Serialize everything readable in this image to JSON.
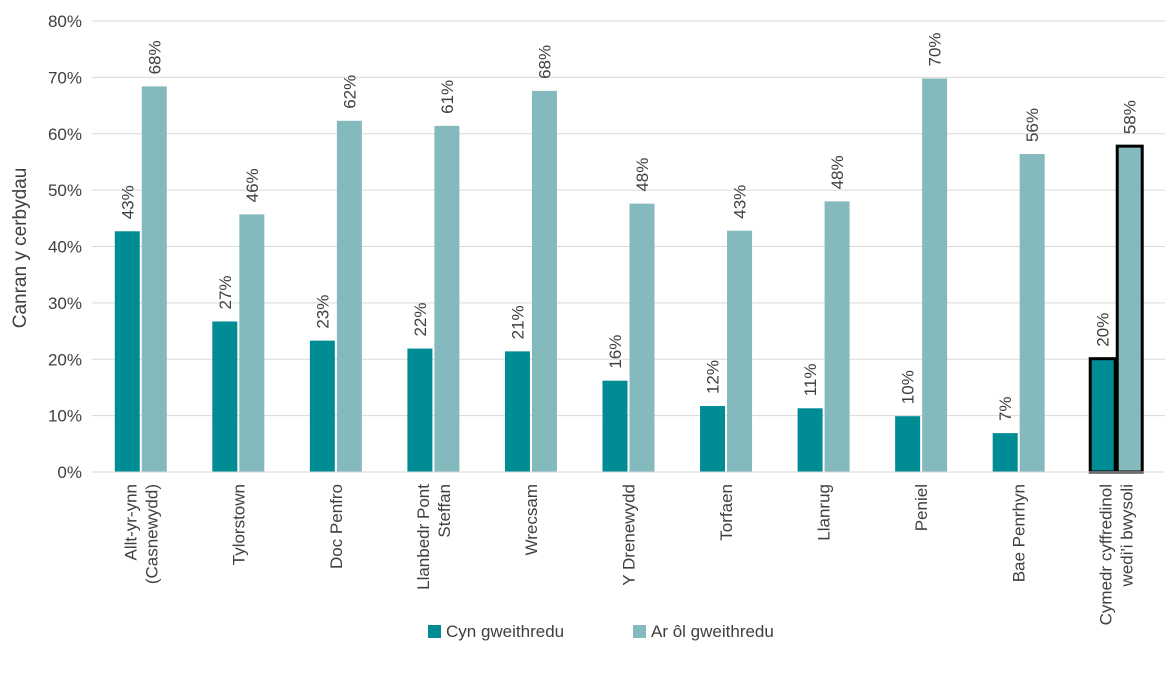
{
  "chart_data": {
    "type": "bar",
    "ylabel": "Canran y cerbydau",
    "ylim": [
      0,
      80
    ],
    "yticks": [
      0,
      10,
      20,
      30,
      40,
      50,
      60,
      70,
      80
    ],
    "ytick_labels": [
      "0%",
      "10%",
      "20%",
      "30%",
      "40%",
      "50%",
      "60%",
      "70%",
      "80%"
    ],
    "grid": true,
    "legend_position": "bottom",
    "categories": [
      [
        "Allt-yr-ynn",
        "(Casnewydd)"
      ],
      [
        "Tylorstown"
      ],
      [
        "Doc Penfro"
      ],
      [
        "Llanbedr Pont",
        "Steffan"
      ],
      [
        "Wrecsam"
      ],
      [
        "Y Drenewydd"
      ],
      [
        "Torfaen"
      ],
      [
        "Llanrug"
      ],
      [
        "Peniel"
      ],
      [
        "Bae Penrhyn"
      ],
      [
        "Cymedr cyffredinol",
        "wedi'i bwysoli"
      ]
    ],
    "highlighted_category_index": 10,
    "series": [
      {
        "name": "Cyn gweithredu",
        "color": "#008C95",
        "values": [
          42.7,
          26.7,
          23.3,
          21.9,
          21.4,
          16.2,
          11.7,
          11.3,
          9.9,
          6.9,
          20.1
        ],
        "labels": [
          "43%",
          "27%",
          "23%",
          "22%",
          "21%",
          "16%",
          "12%",
          "11%",
          "10%",
          "7%",
          "20%"
        ]
      },
      {
        "name": "Ar ôl gweithredu",
        "color": "#84B9BE",
        "values": [
          68.4,
          45.7,
          62.3,
          61.4,
          67.6,
          47.6,
          42.8,
          48.0,
          69.8,
          56.4,
          57.8
        ],
        "labels": [
          "68%",
          "46%",
          "62%",
          "61%",
          "68%",
          "48%",
          "43%",
          "48%",
          "70%",
          "56%",
          "58%"
        ]
      }
    ]
  }
}
